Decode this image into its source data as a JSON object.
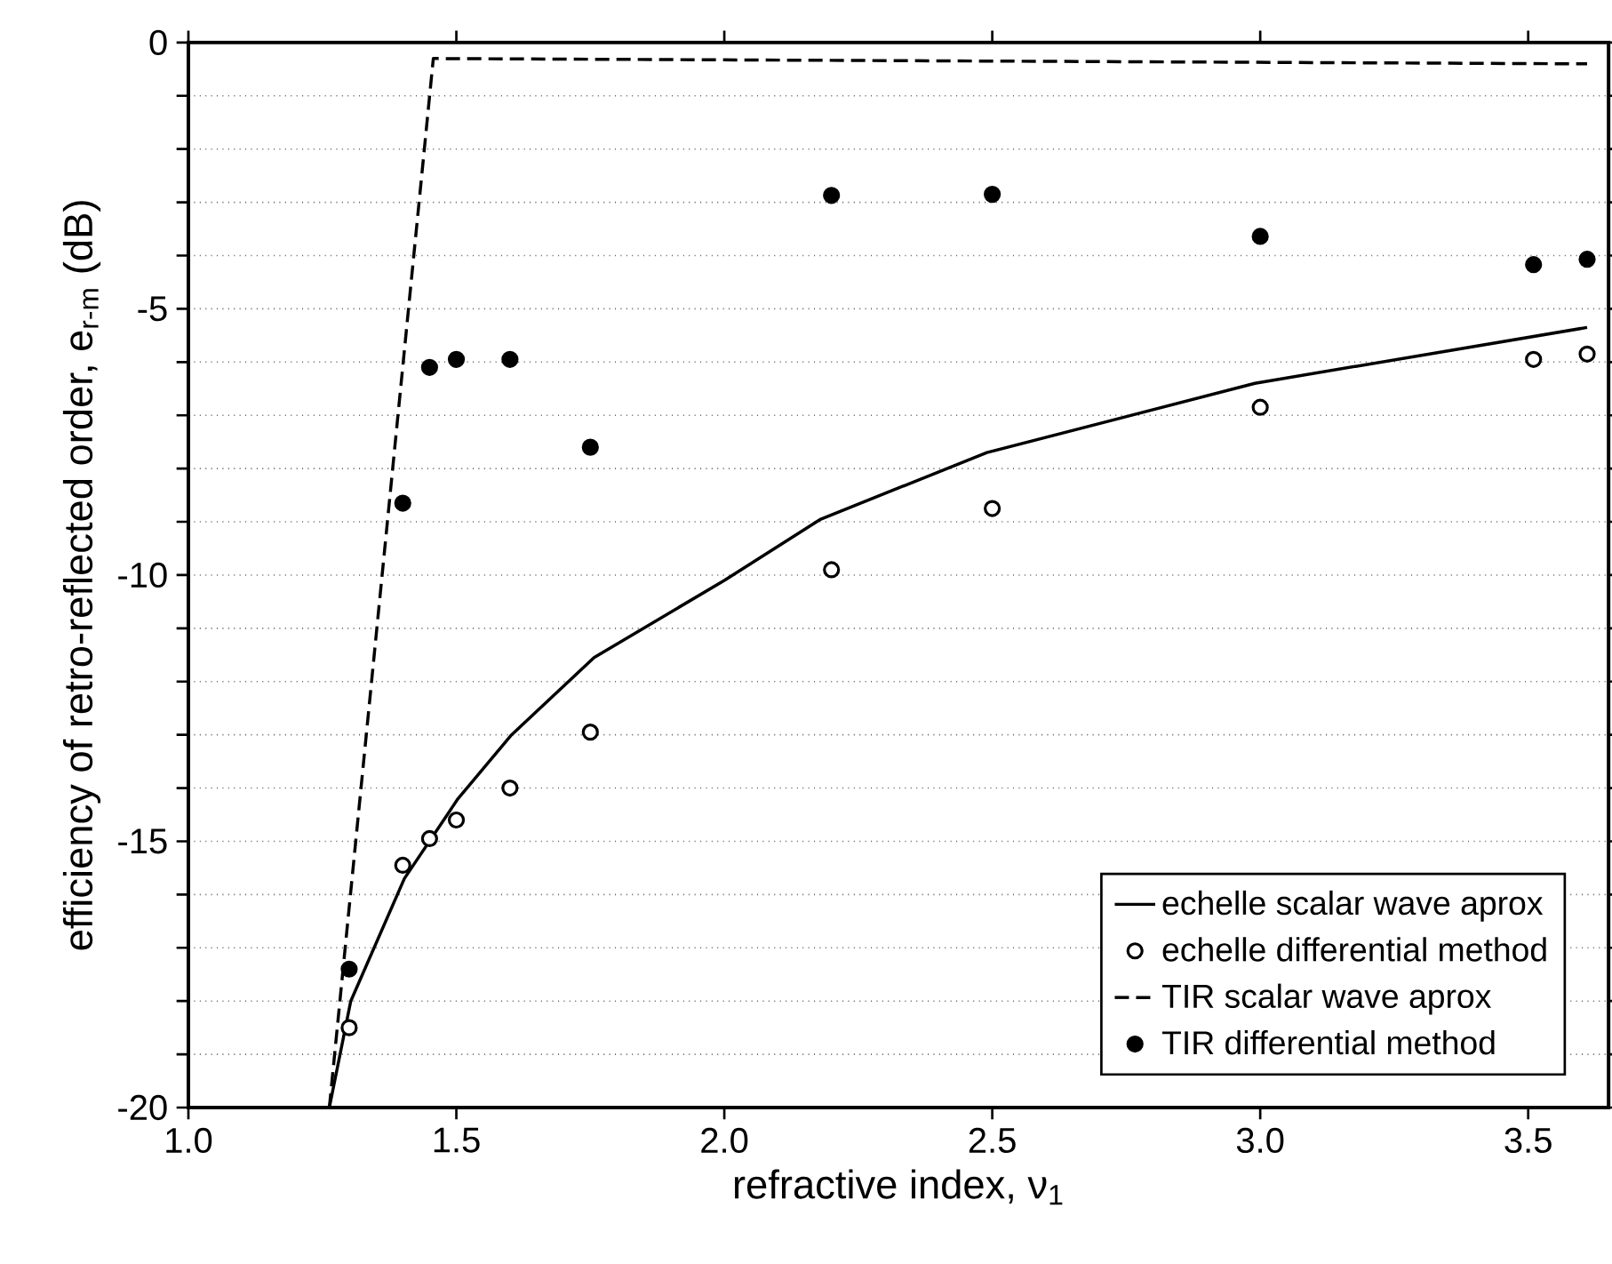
{
  "chart_data": {
    "type": "line",
    "xlabel": "refractive index, ν$_{1}$",
    "ylabel": "efficiency of retro-reflected order, e$_{r-m}$ (dB)",
    "xlim": [
      1.0,
      3.65
    ],
    "ylim": [
      -20,
      0
    ],
    "xticks": [
      {
        "value": 1.0,
        "label": "1.0"
      },
      {
        "value": 1.5,
        "label": "1.5"
      },
      {
        "value": 2.0,
        "label": "2.0"
      },
      {
        "value": 2.5,
        "label": "2.5"
      },
      {
        "value": 3.0,
        "label": "3.0"
      },
      {
        "value": 3.5,
        "label": "3.5"
      }
    ],
    "yticks": [
      0,
      {
        "value": -1,
        "label": null
      },
      {
        "value": -2,
        "label": null
      },
      {
        "value": -3,
        "label": null
      },
      {
        "value": -4,
        "label": null
      },
      -5,
      {
        "value": -6,
        "label": null
      },
      {
        "value": -7,
        "label": null
      },
      {
        "value": -8,
        "label": null
      },
      {
        "value": -9,
        "label": null
      },
      -10,
      {
        "value": -11,
        "label": null
      },
      {
        "value": -12,
        "label": null
      },
      {
        "value": -13,
        "label": null
      },
      {
        "value": -14,
        "label": null
      },
      -15,
      {
        "value": -16,
        "label": null
      },
      {
        "value": -17,
        "label": null
      },
      {
        "value": -18,
        "label": null
      },
      {
        "value": -19,
        "label": null
      },
      -20
    ],
    "grid": "y",
    "legend": "bottom right",
    "series": [
      {
        "name": "echelle scalar wave aprox",
        "line_style": "solid",
        "marker": "none",
        "color": "#000000",
        "x": [
          1.263,
          1.303,
          1.403,
          1.503,
          1.603,
          1.757,
          2.0,
          2.18,
          2.49,
          2.99,
          3.61
        ],
        "values": [
          -20,
          -18.0,
          -15.7,
          -14.2,
          -13.0,
          -11.55,
          -10.1,
          -8.95,
          -7.7,
          -6.4,
          -5.35
        ]
      },
      {
        "name": "echelle differential method",
        "type": "scatter",
        "marker": "circle",
        "color": "#000000",
        "x": [
          1.3,
          1.4,
          1.45,
          1.5,
          1.6,
          1.75,
          2.2,
          2.5,
          3.0,
          3.51,
          3.61
        ],
        "values": [
          -18.5,
          -15.45,
          -14.95,
          -14.6,
          -14.0,
          -12.95,
          -9.9,
          -8.75,
          -6.85,
          -5.95,
          -5.85
        ]
      },
      {
        "name": "TIR scalar wave aprox",
        "line_style": "dashed",
        "marker": "none",
        "color": "#000000",
        "x": [
          1.263,
          1.457,
          3.61
        ],
        "values": [
          -20,
          -0.3,
          -0.4
        ]
      },
      {
        "name": "TIR differential method",
        "type": "scatter",
        "marker": "circle",
        "color": "#000000",
        "x": [
          1.3,
          1.4,
          1.45,
          1.5,
          1.6,
          1.75,
          2.2,
          2.5,
          3.0,
          3.51,
          3.61
        ],
        "values": [
          -17.4,
          -8.65,
          -6.1,
          -5.95,
          -5.95,
          -7.6,
          -2.87,
          -2.85,
          -3.64,
          -4.17,
          -4.07
        ]
      }
    ]
  }
}
